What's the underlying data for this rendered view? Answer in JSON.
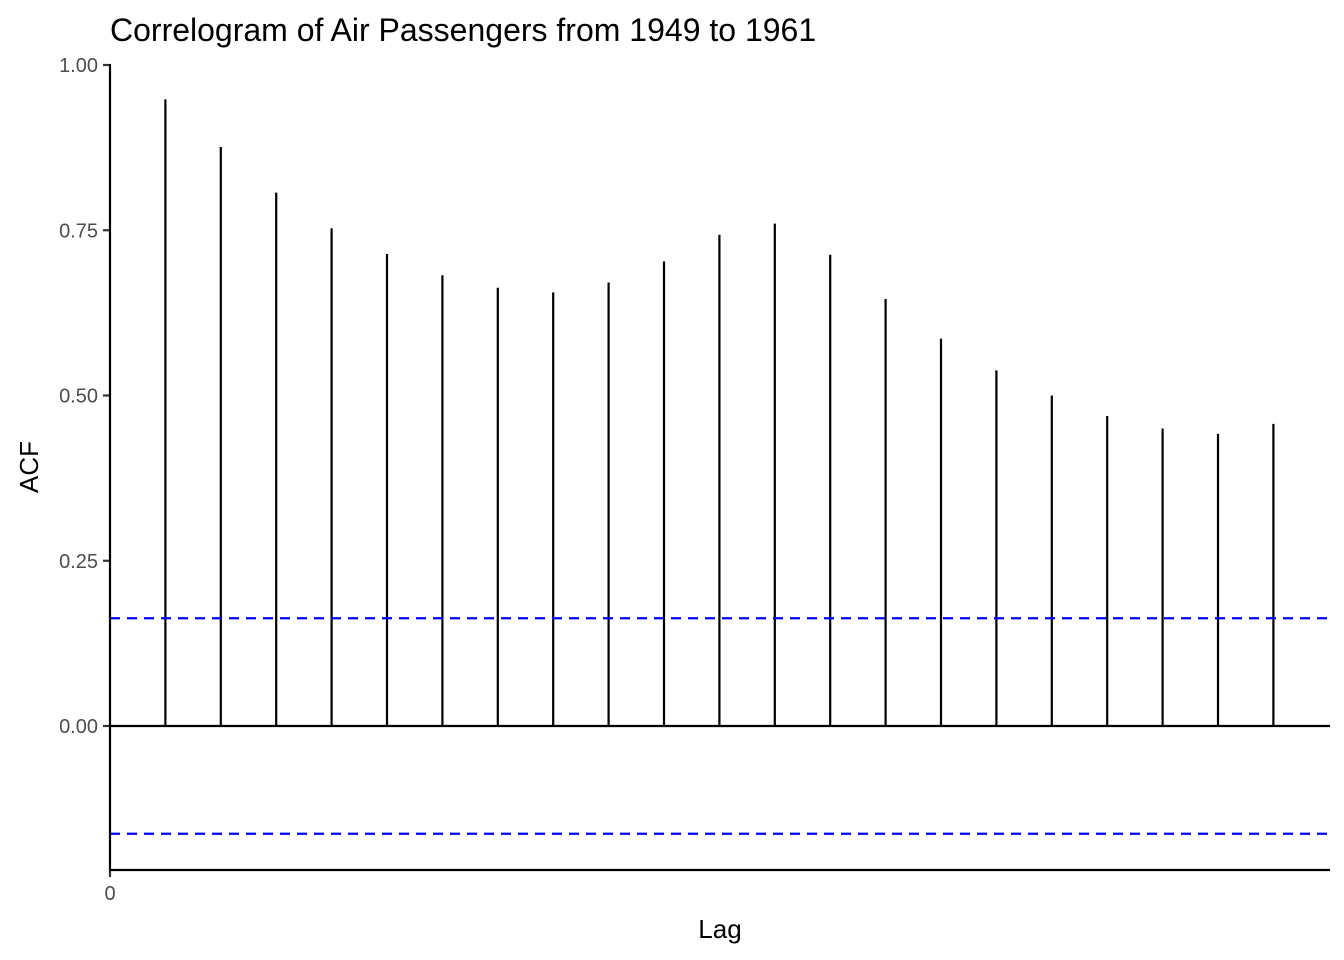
{
  "chart_data": {
    "type": "bar",
    "title": "Correlogram of Air Passengers from 1949 to 1961",
    "xlabel": "Lag",
    "ylabel": "ACF",
    "x_ticks": [
      {
        "value": 0,
        "label": "0"
      }
    ],
    "y_ticks": [
      {
        "value": 0.0,
        "label": "0.00"
      },
      {
        "value": 0.25,
        "label": "0.25"
      },
      {
        "value": 0.5,
        "label": "0.50"
      },
      {
        "value": 0.75,
        "label": "0.75"
      },
      {
        "value": 1.0,
        "label": "1.00"
      }
    ],
    "lags": [
      1,
      2,
      3,
      4,
      5,
      6,
      7,
      8,
      9,
      10,
      11,
      12,
      13,
      14,
      15,
      16,
      17,
      18,
      19,
      20,
      21
    ],
    "values": [
      0.948,
      0.876,
      0.807,
      0.753,
      0.714,
      0.682,
      0.663,
      0.656,
      0.671,
      0.703,
      0.743,
      0.76,
      0.713,
      0.646,
      0.586,
      0.538,
      0.5,
      0.469,
      0.45,
      0.442,
      0.457
    ],
    "confidence_bound": 0.163,
    "xlim": [
      0,
      22
    ],
    "ylim": [
      -0.218,
      1.0
    ],
    "grid": false,
    "colors": {
      "lines": "#000000",
      "bounds": "#0000ff"
    }
  }
}
